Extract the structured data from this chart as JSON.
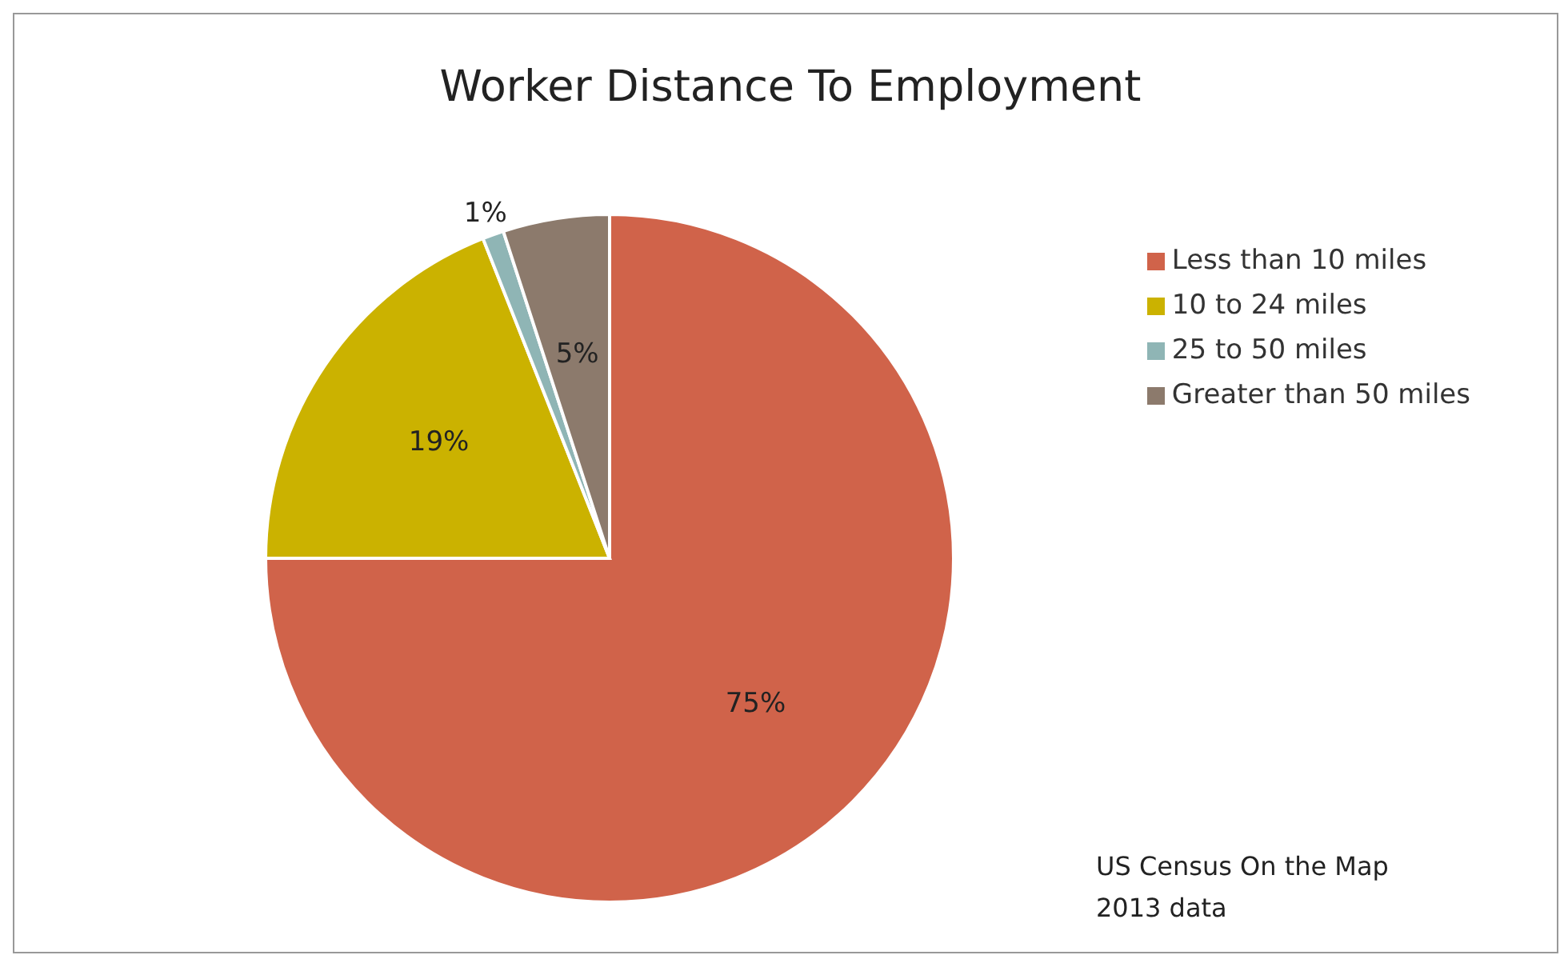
{
  "chart_data": {
    "type": "pie",
    "title": "Worker Distance To Employment",
    "categories": [
      "Less than 10 miles",
      "10 to 24 miles",
      "25 to 50 miles",
      "Greater than 50 miles"
    ],
    "values": [
      75,
      19,
      1,
      5
    ],
    "colors": [
      "#d0634a",
      "#cbb200",
      "#8fb5b5",
      "#8c7a6c"
    ],
    "value_labels": [
      "75%",
      "19%",
      "1%",
      "5%"
    ],
    "legend": "right",
    "annotations": [
      "US Census On the Map\n2013 data"
    ]
  }
}
